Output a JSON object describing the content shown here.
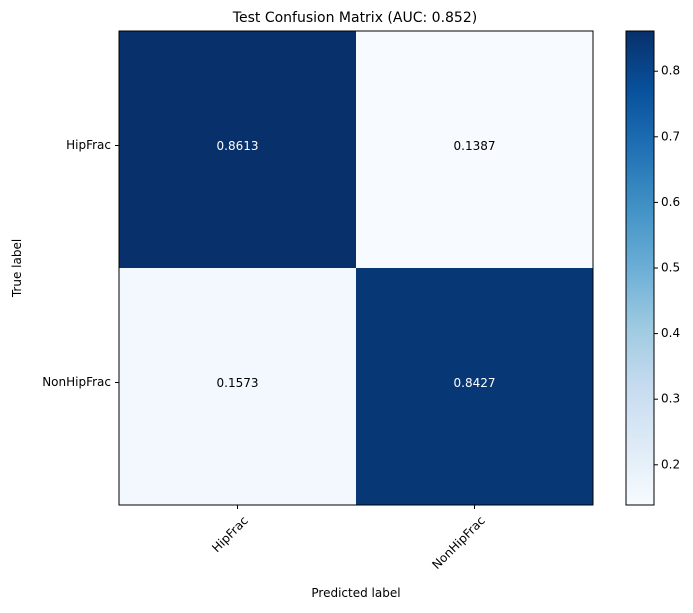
{
  "chart_data": {
    "type": "heatmap",
    "title": "Test Confusion Matrix (AUC: 0.852)",
    "xlabel": "Predicted label",
    "ylabel": "True label",
    "x_categories": [
      "HipFrac",
      "NonHipFrac"
    ],
    "y_categories": [
      "HipFrac",
      "NonHipFrac"
    ],
    "values": [
      [
        0.8613,
        0.1387
      ],
      [
        0.1573,
        0.8427
      ]
    ],
    "cell_labels": [
      [
        "0.8613",
        "0.1387"
      ],
      [
        "0.1573",
        "0.8427"
      ]
    ],
    "colormap": "Blues",
    "colorbar": {
      "range": [
        0.1387,
        0.8613
      ],
      "ticks": [
        0.2,
        0.3,
        0.4,
        0.5,
        0.6,
        0.7,
        0.8
      ],
      "tick_labels": [
        "0.2",
        "0.3",
        "0.4",
        "0.5",
        "0.6",
        "0.7",
        "0.8"
      ]
    },
    "grid": false
  },
  "colors": {
    "low": "#f7fbff",
    "high": "#08306b",
    "text_on_dark": "#ffffff",
    "text_on_light": "#000000"
  }
}
